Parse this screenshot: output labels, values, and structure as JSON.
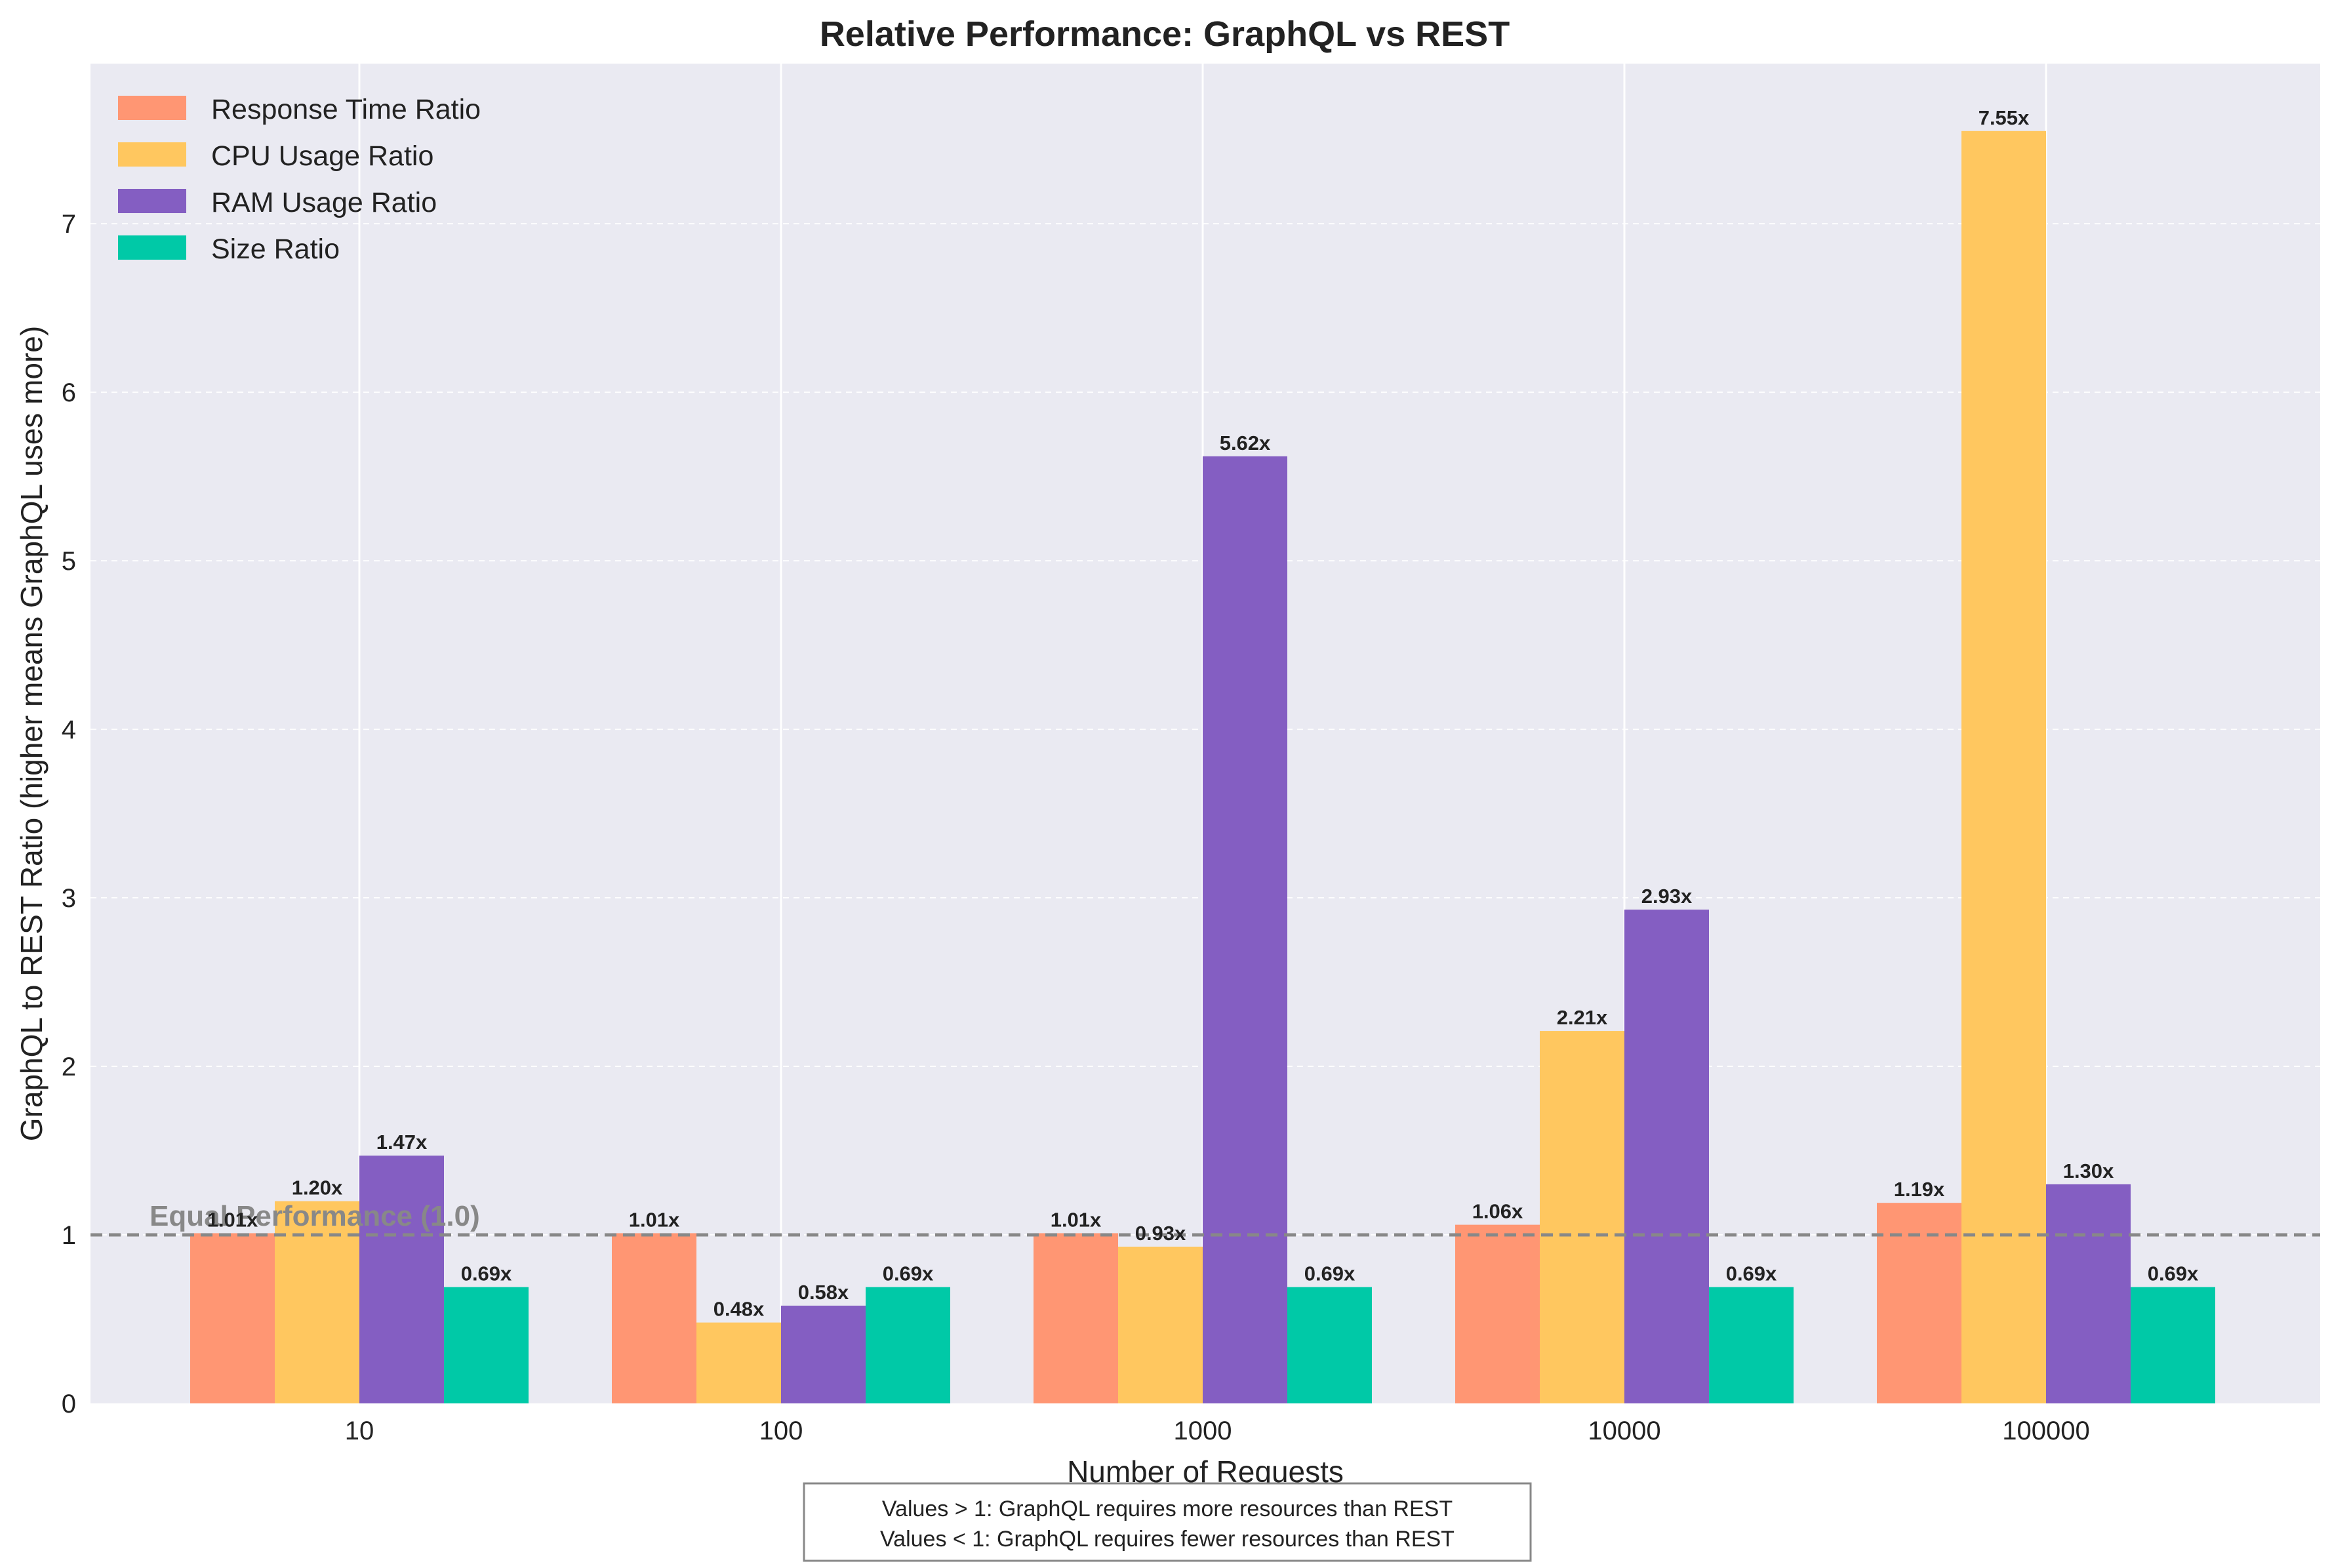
{
  "chart_data": {
    "type": "bar",
    "title": "Relative Performance: GraphQL vs REST",
    "xlabel": "Number of Requests",
    "ylabel": "GraphQL to REST Ratio (higher means GraphQL uses more)",
    "categories": [
      "10",
      "100",
      "1000",
      "10000",
      "100000"
    ],
    "ylim": [
      0,
      7.95
    ],
    "yticks": [
      0,
      1,
      2,
      3,
      4,
      5,
      6,
      7
    ],
    "grid": true,
    "legend_position": "top-left",
    "series": [
      {
        "name": "Response Time Ratio",
        "color": "#FF9673",
        "values": [
          1.01,
          1.01,
          1.01,
          1.06,
          1.19
        ],
        "labels": [
          "1.01x",
          "1.01x",
          "1.01x",
          "1.06x",
          "1.19x"
        ]
      },
      {
        "name": "CPU Usage Ratio",
        "color": "#FFC75F",
        "values": [
          1.2,
          0.48,
          0.93,
          2.21,
          7.55
        ],
        "labels": [
          "1.20x",
          "0.48x",
          "0.93x",
          "2.21x",
          "7.55x"
        ]
      },
      {
        "name": "RAM Usage Ratio",
        "color": "#845EC2",
        "values": [
          1.47,
          0.58,
          5.62,
          2.93,
          1.3
        ],
        "labels": [
          "1.47x",
          "0.58x",
          "5.62x",
          "2.93x",
          "1.30x"
        ]
      },
      {
        "name": "Size Ratio",
        "color": "#00C9A7",
        "values": [
          0.69,
          0.69,
          0.69,
          0.69,
          0.69
        ],
        "labels": [
          "0.69x",
          "0.69x",
          "0.69x",
          "0.69x",
          "0.69x"
        ]
      }
    ],
    "reference_line": {
      "value": 1.0,
      "label": "Equal Performance (1.0)",
      "color": "#888888",
      "style": "dashed"
    },
    "annotation": {
      "lines": [
        "Values > 1: GraphQL requires more resources than REST",
        "Values < 1: GraphQL requires fewer resources than REST"
      ]
    },
    "colors": {
      "plot_background": "#EAEAF2",
      "grid": "#ffffff",
      "text": "#222222"
    }
  }
}
